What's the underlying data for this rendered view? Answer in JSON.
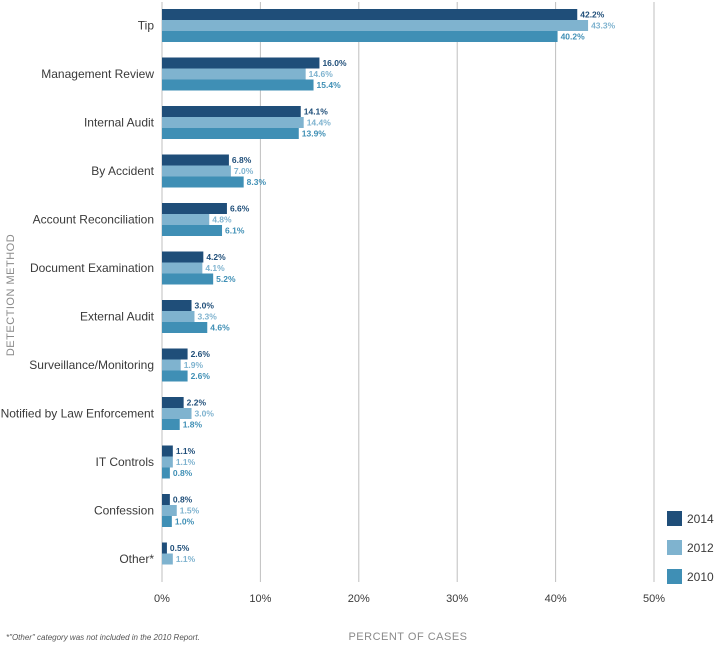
{
  "chart_data": {
    "type": "bar",
    "orientation": "horizontal",
    "categories": [
      "Tip",
      "Management Review",
      "Internal Audit",
      "By Accident",
      "Account Reconciliation",
      "Document Examination",
      "External Audit",
      "Surveillance/Monitoring",
      "Notified by Law Enforcement",
      "IT Controls",
      "Confession",
      "Other*"
    ],
    "series": [
      {
        "name": "2014",
        "color": "#1f4e79",
        "values": [
          42.2,
          16.0,
          14.1,
          6.8,
          6.6,
          4.2,
          3.0,
          2.6,
          2.2,
          1.1,
          0.8,
          0.5
        ],
        "labels": [
          "42.2%",
          "16.0%",
          "14.1%",
          "6.8%",
          "6.6%",
          "4.2%",
          "3.0%",
          "2.6%",
          "2.2%",
          "1.1%",
          "0.8%",
          "0.5%"
        ]
      },
      {
        "name": "2012",
        "color": "#7fb3cf",
        "values": [
          43.3,
          14.6,
          14.4,
          7.0,
          4.8,
          4.1,
          3.3,
          1.9,
          3.0,
          1.1,
          1.5,
          1.1
        ],
        "labels": [
          "43.3%",
          "14.6%",
          "14.4%",
          "7.0%",
          "4.8%",
          "4.1%",
          "3.3%",
          "1.9%",
          "3.0%",
          "1.1%",
          "1.5%",
          "1.1%"
        ]
      },
      {
        "name": "2010",
        "color": "#3f8fb5",
        "values": [
          40.2,
          15.4,
          13.9,
          8.3,
          6.1,
          5.2,
          4.6,
          2.6,
          1.8,
          0.8,
          1.0,
          null
        ],
        "labels": [
          "40.2%",
          "15.4%",
          "13.9%",
          "8.3%",
          "6.1%",
          "5.2%",
          "4.6%",
          "2.6%",
          "1.8%",
          "0.8%",
          "1.0%",
          null
        ]
      }
    ],
    "xlim": [
      0,
      50
    ],
    "xticks": [
      "0%",
      "10%",
      "20%",
      "30%",
      "40%",
      "50%"
    ],
    "xlabel": "PERCENT OF CASES",
    "ylabel": "DETECTION METHOD",
    "legend": {
      "placement": "right-bottom",
      "order": [
        "2014",
        "2012",
        "2010"
      ]
    },
    "grid": true
  },
  "footnote": "*\"Other\" category was not included in the 2010 Report."
}
